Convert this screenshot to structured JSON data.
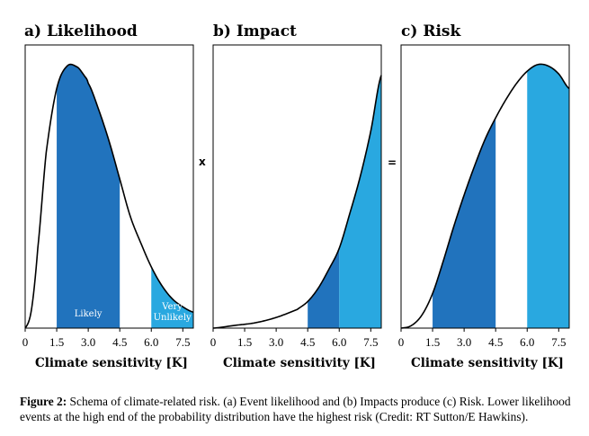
{
  "figure": {
    "caption_lead": "Figure 2:",
    "caption_text": " Schema of climate-related risk. (a) Event likelihood and (b) Impacts produce (c) Risk. Lower likelihood events at the high end of the probability distribution have the highest risk (Credit: RT Sutton/E Hawkins).",
    "operator_times": "x",
    "operator_equals": "="
  },
  "colors": {
    "dark_blue": "#2173bd",
    "light_blue": "#29a8e0",
    "line": "#000000"
  },
  "chart_data": [
    {
      "type": "area",
      "title": "a) Likelihood",
      "xlabel": "Climate sensitivity [K]",
      "xlim": [
        0,
        8
      ],
      "ylim": [
        0,
        1
      ],
      "xticks": [
        "0",
        "1.5",
        "3.0",
        "4.5",
        "6.0",
        "7.5"
      ],
      "x": [
        0,
        0.3,
        0.6,
        1.0,
        1.5,
        2.0,
        2.5,
        2.8,
        3.0,
        3.5,
        4.0,
        4.5,
        5.0,
        5.5,
        6.0,
        6.5,
        7.0,
        7.5,
        8.0
      ],
      "y": [
        0.0,
        0.07,
        0.3,
        0.66,
        0.9,
        0.985,
        0.98,
        0.95,
        0.92,
        0.82,
        0.7,
        0.56,
        0.42,
        0.32,
        0.23,
        0.16,
        0.11,
        0.08,
        0.06
      ],
      "bands": [
        {
          "from": 1.5,
          "to": 4.5,
          "color": "dark_blue",
          "label": "Likely"
        },
        {
          "from": 6.0,
          "to": 8.0,
          "color": "light_blue",
          "label": "Very Unlikely"
        }
      ]
    },
    {
      "type": "area",
      "title": "b) Impact",
      "xlabel": "Climate sensitivity [K]",
      "xlim": [
        0,
        8
      ],
      "ylim": [
        0,
        1
      ],
      "xticks": [
        "0",
        "1.5",
        "3.0",
        "4.5",
        "6.0",
        "7.5"
      ],
      "x": [
        0,
        1,
        2,
        3,
        4,
        4.5,
        5,
        5.5,
        6,
        6.5,
        7,
        7.5,
        8.0
      ],
      "y": [
        0.0,
        0.01,
        0.02,
        0.04,
        0.07,
        0.1,
        0.15,
        0.22,
        0.3,
        0.43,
        0.57,
        0.74,
        0.95
      ],
      "bands": [
        {
          "from": 4.5,
          "to": 6.0,
          "color": "dark_blue",
          "label": ""
        },
        {
          "from": 6.0,
          "to": 8.0,
          "color": "light_blue",
          "label": ""
        }
      ]
    },
    {
      "type": "area",
      "title": "c) Risk",
      "xlabel": "Climate sensitivity [K]",
      "xlim": [
        0,
        8
      ],
      "ylim": [
        0,
        1
      ],
      "xticks": [
        "0",
        "1.5",
        "3.0",
        "4.5",
        "6.0",
        "7.5"
      ],
      "x": [
        0,
        0.5,
        1.0,
        1.5,
        2.0,
        2.5,
        3.0,
        3.5,
        4.0,
        4.5,
        5.0,
        5.5,
        6.0,
        6.5,
        7.0,
        7.5,
        8.0
      ],
      "y": [
        0.0,
        0.01,
        0.05,
        0.13,
        0.25,
        0.38,
        0.5,
        0.61,
        0.71,
        0.79,
        0.86,
        0.92,
        0.965,
        0.99,
        0.985,
        0.955,
        0.9
      ],
      "bands": [
        {
          "from": 1.5,
          "to": 4.5,
          "color": "dark_blue",
          "label": ""
        },
        {
          "from": 6.0,
          "to": 8.0,
          "color": "light_blue",
          "label": ""
        }
      ]
    }
  ]
}
